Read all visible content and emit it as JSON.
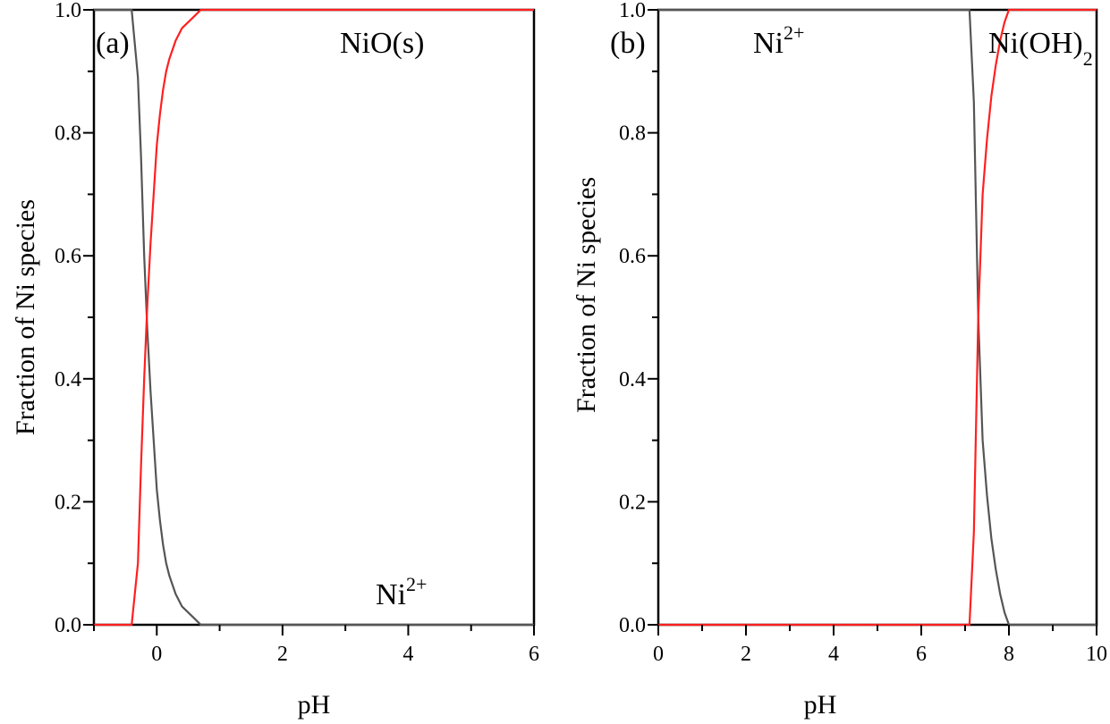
{
  "figure": {
    "panels": [
      {
        "panel_label": "(a)",
        "xlabel": "pH",
        "ylabel": "Fraction of Ni species",
        "annotations": [
          {
            "text": "NiO(s)",
            "sup": "",
            "sub": ""
          },
          {
            "text": "Ni",
            "sup": "2+",
            "sub": ""
          }
        ]
      },
      {
        "panel_label": "(b)",
        "xlabel": "pH",
        "ylabel": "Fraction of Ni species",
        "annotations": [
          {
            "text": "Ni",
            "sup": "2+",
            "sub": ""
          },
          {
            "text": "Ni(OH)",
            "sup": "",
            "sub": "2"
          }
        ]
      }
    ]
  },
  "colors": {
    "ni2_series": "#555555",
    "solid_series": "#ff2020",
    "axes": "#000000"
  },
  "chart_data": [
    {
      "type": "line",
      "title": "",
      "xlabel": "pH",
      "ylabel": "Fraction of Ni species",
      "xlim": [
        -1,
        6
      ],
      "ylim": [
        0,
        1
      ],
      "xticks": [
        0,
        2,
        4,
        6
      ],
      "yticks": [
        0.0,
        0.2,
        0.4,
        0.6,
        0.8,
        1.0
      ],
      "grid": false,
      "series": [
        {
          "name": "Ni2+",
          "color": "#555555",
          "x": [
            -1.0,
            -0.4,
            -0.3,
            -0.25,
            -0.2,
            -0.15,
            -0.1,
            -0.05,
            0.0,
            0.05,
            0.1,
            0.15,
            0.2,
            0.3,
            0.4,
            0.5,
            0.6,
            0.7,
            6.0
          ],
          "y": [
            1.0,
            1.0,
            0.89,
            0.76,
            0.6,
            0.48,
            0.38,
            0.3,
            0.22,
            0.17,
            0.13,
            0.1,
            0.08,
            0.05,
            0.03,
            0.02,
            0.01,
            0.0,
            0.0
          ]
        },
        {
          "name": "NiO(s)",
          "color": "#ff2020",
          "x": [
            -1.0,
            -0.4,
            -0.3,
            -0.25,
            -0.2,
            -0.15,
            -0.1,
            -0.05,
            0.0,
            0.05,
            0.1,
            0.15,
            0.2,
            0.3,
            0.4,
            0.5,
            0.6,
            0.7,
            6.0
          ],
          "y": [
            0.0,
            0.0,
            0.1,
            0.26,
            0.4,
            0.52,
            0.62,
            0.7,
            0.78,
            0.83,
            0.87,
            0.9,
            0.92,
            0.95,
            0.97,
            0.98,
            0.99,
            1.0,
            1.0
          ]
        }
      ]
    },
    {
      "type": "line",
      "title": "",
      "xlabel": "pH",
      "ylabel": "Fraction of Ni species",
      "xlim": [
        0,
        10
      ],
      "ylim": [
        0,
        1
      ],
      "xticks": [
        0,
        2,
        4,
        6,
        8,
        10
      ],
      "yticks": [
        0.0,
        0.2,
        0.4,
        0.6,
        0.8,
        1.0
      ],
      "grid": false,
      "series": [
        {
          "name": "Ni2+",
          "color": "#555555",
          "x": [
            0.0,
            7.1,
            7.2,
            7.3,
            7.4,
            7.5,
            7.6,
            7.7,
            7.8,
            7.9,
            8.0,
            10.0
          ],
          "y": [
            1.0,
            1.0,
            0.85,
            0.5,
            0.3,
            0.21,
            0.14,
            0.09,
            0.05,
            0.02,
            0.0,
            0.0
          ]
        },
        {
          "name": "Ni(OH)2",
          "color": "#ff2020",
          "x": [
            0.0,
            7.1,
            7.2,
            7.3,
            7.4,
            7.5,
            7.6,
            7.7,
            7.8,
            7.9,
            8.0,
            10.0
          ],
          "y": [
            0.0,
            0.0,
            0.15,
            0.5,
            0.7,
            0.79,
            0.86,
            0.91,
            0.95,
            0.98,
            1.0,
            1.0
          ]
        }
      ]
    }
  ]
}
